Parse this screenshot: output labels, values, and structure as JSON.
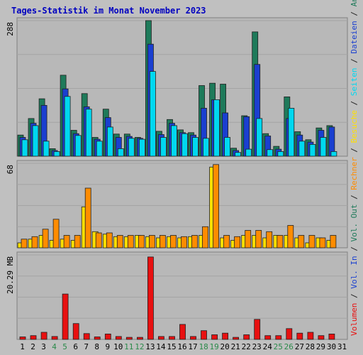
{
  "chart_data": {
    "type": "bar",
    "title": "Tages-Statistik im Monat November 2023",
    "categories": [
      "1",
      "2",
      "3",
      "4",
      "5",
      "6",
      "7",
      "8",
      "9",
      "10",
      "11",
      "12",
      "13",
      "14",
      "15",
      "16",
      "17",
      "18",
      "19",
      "20",
      "21",
      "22",
      "23",
      "24",
      "25",
      "26",
      "27",
      "28",
      "29",
      "30",
      "31"
    ],
    "weekend_days": [
      "4",
      "5",
      "11",
      "12",
      "18",
      "19",
      "25",
      "26"
    ],
    "panels": [
      {
        "id": "top",
        "ymax_label": "288",
        "ymax": 288,
        "series": [
          {
            "name": "Anfragen",
            "color": "#1e7a5a",
            "values": [
              45,
              80,
              122,
              16,
              172,
              55,
              133,
              40,
              100,
              47,
              47,
              40,
              288,
              53,
              78,
              56,
              50,
              150,
              155,
              153,
              17,
              86,
              264,
              48,
              21,
              126,
              52,
              35,
              60,
              65,
              0
            ]
          },
          {
            "name": "Dateien",
            "color": "#1a3fd0",
            "values": [
              40,
              70,
              108,
              12,
              143,
              48,
              105,
              36,
              82,
              40,
              42,
              38,
              238,
              46,
              70,
              50,
              45,
              102,
              120,
              92,
              12,
              84,
              195,
              43,
              15,
              80,
              45,
              30,
              55,
              62,
              0
            ]
          },
          {
            "name": "Seiten",
            "color": "#00d8f0",
            "values": [
              35,
              65,
              32,
              10,
              127,
              44,
              100,
              32,
              62,
              16,
              38,
              36,
              180,
              40,
              65,
              48,
              40,
              38,
              120,
              40,
              8,
              15,
              80,
              14,
              10,
              102,
              32,
              25,
              40,
              10,
              0
            ]
          }
        ]
      },
      {
        "id": "middle",
        "ymax_label": "68",
        "ymax": 68,
        "series": [
          {
            "name": "Besuche",
            "color": "#ffe000",
            "values": [
              4,
              7,
              10,
              6,
              7,
              6,
              33,
              13,
              11,
              9,
              9,
              10,
              9,
              8,
              9,
              8,
              9,
              10,
              65,
              8,
              6,
              10,
              10,
              8,
              10,
              10,
              8,
              4,
              8,
              6,
              0
            ]
          },
          {
            "name": "Rechner",
            "color": "#ff8c00",
            "values": [
              7,
              9,
              15,
              23,
              10,
              10,
              48,
              12,
              12,
              10,
              10,
              10,
              10,
              10,
              10,
              9,
              10,
              17,
              67,
              10,
              9,
              14,
              14,
              13,
              10,
              18,
              10,
              10,
              8,
              10,
              0
            ]
          }
        ]
      },
      {
        "id": "bottom",
        "ymax_label": "20.29 MB",
        "ymax": 20.29,
        "series": [
          {
            "name": "Volumen",
            "color": "#e81010",
            "values": [
              0.6,
              0.9,
              1.7,
              0.7,
              10.9,
              3.8,
              1.4,
              0.6,
              1.3,
              0.7,
              0.5,
              0.5,
              19.8,
              0.7,
              0.7,
              3.6,
              0.7,
              2.1,
              1.1,
              1.5,
              0.5,
              1.1,
              4.8,
              0.9,
              0.9,
              2.6,
              1.5,
              1.7,
              0.9,
              1.3,
              0
            ]
          }
        ]
      }
    ],
    "right_legend": [
      {
        "text": "Volumen",
        "color": "#e81010"
      },
      {
        "text": " / ",
        "color": "#222222"
      },
      {
        "text": "Vol. In",
        "color": "#1a3fd0"
      },
      {
        "text": " / ",
        "color": "#222222"
      },
      {
        "text": "Vol. Out",
        "color": "#1e7a5a"
      },
      {
        "text": " / ",
        "color": "#222222"
      },
      {
        "text": "Rechner",
        "color": "#ff8c00"
      },
      {
        "text": " / ",
        "color": "#222222"
      },
      {
        "text": "Besuche",
        "color": "#ffe000"
      },
      {
        "text": " / ",
        "color": "#222222"
      },
      {
        "text": "Seiten",
        "color": "#00d8f0"
      },
      {
        "text": " / ",
        "color": "#222222"
      },
      {
        "text": "Dateien",
        "color": "#1a3fd0"
      },
      {
        "text": " / ",
        "color": "#222222"
      },
      {
        "text": "Anfragen",
        "color": "#1e7a5a"
      }
    ],
    "grid": true,
    "colors": {
      "background": "#c0c0c0",
      "plot_bg": "#b8b8b8",
      "title": "#0000c0",
      "weekday_label": "#000000",
      "weekend_label": "#2a8a4a"
    }
  }
}
